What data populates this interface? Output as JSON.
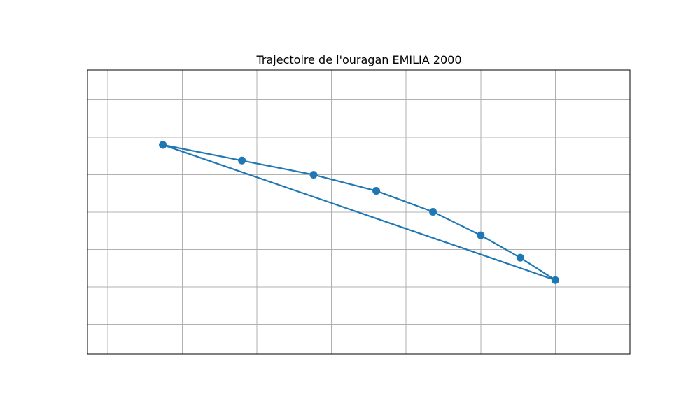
{
  "chart_data": {
    "type": "line",
    "title": "Trajectoire de l'ouragan EMILIA 2000",
    "xlabel": "",
    "ylabel": "",
    "xlim": [
      -0.27,
      7.0
    ],
    "ylim": [
      0.0,
      7.6
    ],
    "x_gridlines": [
      0,
      1,
      2,
      3,
      4,
      5,
      6
    ],
    "y_gridlines": [
      0.8,
      1.8,
      2.8,
      3.8,
      4.8,
      5.8,
      6.8
    ],
    "grid": true,
    "series": [
      {
        "color": "#1f77b4",
        "marker": "circle",
        "points": [
          {
            "x": 0.74,
            "y": 5.6
          },
          {
            "x": 1.8,
            "y": 5.18
          },
          {
            "x": 2.76,
            "y": 4.8
          },
          {
            "x": 3.6,
            "y": 4.37
          },
          {
            "x": 4.36,
            "y": 3.81
          },
          {
            "x": 5.0,
            "y": 3.18
          },
          {
            "x": 5.53,
            "y": 2.58
          },
          {
            "x": 6.0,
            "y": 1.98
          },
          {
            "x": 0.74,
            "y": 5.6
          }
        ]
      }
    ]
  }
}
